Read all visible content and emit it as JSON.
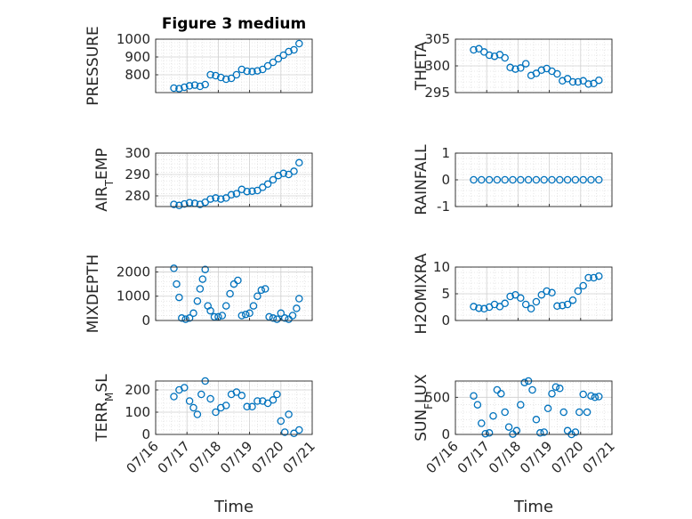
{
  "figure_title": "Figure 3 medium",
  "marker_color": "#0072BD",
  "xaxis": {
    "label": "Time",
    "range": [
      "2016-07-16",
      "2016-07-21"
    ],
    "ticks": [
      {
        "date": "2016-07-16",
        "label": "07/16"
      },
      {
        "date": "2016-07-17",
        "label": "07/17"
      },
      {
        "date": "2016-07-18",
        "label": "07/18"
      },
      {
        "date": "2016-07-19",
        "label": "07/19"
      },
      {
        "date": "2016-07-20",
        "label": "07/20"
      },
      {
        "date": "2016-07-21",
        "label": "07/21"
      }
    ]
  },
  "chart_data": [
    {
      "id": "pressure",
      "type": "scatter",
      "title": "Figure 3 medium",
      "ylabel": "PRESSURE",
      "ylim": [
        700,
        1000
      ],
      "yticks": [
        800,
        900,
        1000
      ],
      "grid": true,
      "x": [
        "2016-07-16 14:00",
        "2016-07-16 18:00",
        "2016-07-16 22:00",
        "2016-07-17 02:00",
        "2016-07-17 06:00",
        "2016-07-17 10:00",
        "2016-07-17 14:00",
        "2016-07-17 18:00",
        "2016-07-17 22:00",
        "2016-07-18 02:00",
        "2016-07-18 06:00",
        "2016-07-18 10:00",
        "2016-07-18 14:00",
        "2016-07-18 18:00",
        "2016-07-18 22:00",
        "2016-07-19 02:00",
        "2016-07-19 06:00",
        "2016-07-19 10:00",
        "2016-07-19 14:00",
        "2016-07-19 18:00",
        "2016-07-19 22:00",
        "2016-07-20 02:00",
        "2016-07-20 06:00",
        "2016-07-20 10:00",
        "2016-07-20 14:00"
      ],
      "y": [
        725,
        722,
        730,
        738,
        742,
        735,
        745,
        800,
        795,
        785,
        775,
        780,
        800,
        830,
        820,
        818,
        822,
        830,
        850,
        870,
        890,
        910,
        930,
        940,
        975
      ]
    },
    {
      "id": "theta",
      "type": "scatter",
      "ylabel": "THETA",
      "ylim": [
        295,
        305
      ],
      "yticks": [
        295,
        300,
        305
      ],
      "grid": true,
      "x": [
        "2016-07-16 14:00",
        "2016-07-16 18:00",
        "2016-07-16 22:00",
        "2016-07-17 02:00",
        "2016-07-17 06:00",
        "2016-07-17 10:00",
        "2016-07-17 14:00",
        "2016-07-17 18:00",
        "2016-07-17 22:00",
        "2016-07-18 02:00",
        "2016-07-18 06:00",
        "2016-07-18 10:00",
        "2016-07-18 14:00",
        "2016-07-18 18:00",
        "2016-07-18 22:00",
        "2016-07-19 02:00",
        "2016-07-19 06:00",
        "2016-07-19 10:00",
        "2016-07-19 14:00",
        "2016-07-19 18:00",
        "2016-07-19 22:00",
        "2016-07-20 02:00",
        "2016-07-20 06:00",
        "2016-07-20 10:00",
        "2016-07-20 14:00"
      ],
      "y": [
        303,
        303.2,
        302.6,
        302,
        301.8,
        302.1,
        301.5,
        299.7,
        299.4,
        299.6,
        300.4,
        298.2,
        298.6,
        299.2,
        299.5,
        299,
        298.5,
        297.2,
        297.6,
        297,
        297,
        297.2,
        296.6,
        296.7,
        297.3
      ]
    },
    {
      "id": "air_temp",
      "type": "scatter",
      "ylabel": "AIR_TEMP",
      "ylim": [
        275,
        300
      ],
      "yticks": [
        280,
        290,
        300
      ],
      "grid": true,
      "x": [
        "2016-07-16 14:00",
        "2016-07-16 18:00",
        "2016-07-16 22:00",
        "2016-07-17 02:00",
        "2016-07-17 06:00",
        "2016-07-17 10:00",
        "2016-07-17 14:00",
        "2016-07-17 18:00",
        "2016-07-17 22:00",
        "2016-07-18 02:00",
        "2016-07-18 06:00",
        "2016-07-18 10:00",
        "2016-07-18 14:00",
        "2016-07-18 18:00",
        "2016-07-18 22:00",
        "2016-07-19 02:00",
        "2016-07-19 06:00",
        "2016-07-19 10:00",
        "2016-07-19 14:00",
        "2016-07-19 18:00",
        "2016-07-19 22:00",
        "2016-07-20 02:00",
        "2016-07-20 06:00",
        "2016-07-20 10:00",
        "2016-07-20 14:00"
      ],
      "y": [
        276,
        275.5,
        276.2,
        276.8,
        276.5,
        276,
        277,
        278.5,
        279,
        278.5,
        279,
        280.5,
        281,
        283,
        282,
        282.2,
        282.5,
        284,
        285.5,
        287.5,
        289.5,
        290.5,
        290,
        291.5,
        295.5
      ]
    },
    {
      "id": "rainfall",
      "type": "scatter",
      "ylabel": "RAINFALL",
      "ylim": [
        -1,
        1
      ],
      "yticks": [
        -1,
        0,
        1
      ],
      "grid": true,
      "x": [
        "2016-07-16 14:00",
        "2016-07-16 20:00",
        "2016-07-17 02:00",
        "2016-07-17 08:00",
        "2016-07-17 14:00",
        "2016-07-17 20:00",
        "2016-07-18 02:00",
        "2016-07-18 08:00",
        "2016-07-18 14:00",
        "2016-07-18 20:00",
        "2016-07-19 02:00",
        "2016-07-19 08:00",
        "2016-07-19 14:00",
        "2016-07-19 20:00",
        "2016-07-20 02:00",
        "2016-07-20 08:00",
        "2016-07-20 14:00"
      ],
      "y": [
        0,
        0,
        0,
        0,
        0,
        0,
        0,
        0,
        0,
        0,
        0,
        0,
        0,
        0,
        0,
        0,
        0
      ]
    },
    {
      "id": "mixdepth",
      "type": "scatter",
      "ylabel": "MIXDEPTH",
      "ylim": [
        0,
        2200
      ],
      "yticks": [
        0,
        1000,
        2000
      ],
      "grid": true,
      "x": [
        "2016-07-16 14:00",
        "2016-07-16 16:00",
        "2016-07-16 18:00",
        "2016-07-16 20:00",
        "2016-07-16 23:00",
        "2016-07-17 02:00",
        "2016-07-17 05:00",
        "2016-07-17 08:00",
        "2016-07-17 10:00",
        "2016-07-17 12:00",
        "2016-07-17 14:00",
        "2016-07-17 16:00",
        "2016-07-17 18:00",
        "2016-07-17 21:00",
        "2016-07-18 00:00",
        "2016-07-18 03:00",
        "2016-07-18 06:00",
        "2016-07-18 09:00",
        "2016-07-18 12:00",
        "2016-07-18 15:00",
        "2016-07-18 18:00",
        "2016-07-18 21:00",
        "2016-07-19 00:00",
        "2016-07-19 03:00",
        "2016-07-19 06:00",
        "2016-07-19 09:00",
        "2016-07-19 12:00",
        "2016-07-19 15:00",
        "2016-07-19 18:00",
        "2016-07-19 21:00",
        "2016-07-20 00:00",
        "2016-07-20 03:00",
        "2016-07-20 06:00",
        "2016-07-20 09:00",
        "2016-07-20 12:00",
        "2016-07-20 14:00"
      ],
      "y": [
        2150,
        1500,
        950,
        100,
        50,
        100,
        300,
        800,
        1300,
        1700,
        2100,
        600,
        400,
        150,
        150,
        200,
        600,
        1100,
        1500,
        1650,
        200,
        250,
        300,
        600,
        1000,
        1250,
        1300,
        150,
        100,
        50,
        300,
        100,
        50,
        200,
        500,
        900
      ]
    },
    {
      "id": "h2omixra",
      "type": "scatter",
      "ylabel": "H2OMIXRA",
      "ylim": [
        0,
        10
      ],
      "yticks": [
        0,
        5,
        10
      ],
      "grid": true,
      "x": [
        "2016-07-16 14:00",
        "2016-07-16 18:00",
        "2016-07-16 22:00",
        "2016-07-17 02:00",
        "2016-07-17 06:00",
        "2016-07-17 10:00",
        "2016-07-17 14:00",
        "2016-07-17 18:00",
        "2016-07-17 22:00",
        "2016-07-18 02:00",
        "2016-07-18 06:00",
        "2016-07-18 10:00",
        "2016-07-18 14:00",
        "2016-07-18 18:00",
        "2016-07-18 22:00",
        "2016-07-19 02:00",
        "2016-07-19 06:00",
        "2016-07-19 10:00",
        "2016-07-19 14:00",
        "2016-07-19 18:00",
        "2016-07-19 22:00",
        "2016-07-20 02:00",
        "2016-07-20 06:00",
        "2016-07-20 10:00",
        "2016-07-20 14:00"
      ],
      "y": [
        2.6,
        2.3,
        2.2,
        2.5,
        3,
        2.6,
        3.2,
        4.5,
        4.8,
        4.2,
        3,
        2.2,
        3.5,
        4.8,
        5.5,
        5.2,
        2.7,
        2.8,
        3,
        3.8,
        5.5,
        6.5,
        8,
        8,
        8.3
      ]
    },
    {
      "id": "terr_msl",
      "type": "scatter",
      "ylabel": "TERR_MSL",
      "ylim": [
        0,
        240
      ],
      "yticks": [
        0,
        100,
        200
      ],
      "grid": true,
      "x": [
        "2016-07-16 14:00",
        "2016-07-16 18:00",
        "2016-07-16 22:00",
        "2016-07-17 02:00",
        "2016-07-17 05:00",
        "2016-07-17 08:00",
        "2016-07-17 11:00",
        "2016-07-17 14:00",
        "2016-07-17 18:00",
        "2016-07-17 22:00",
        "2016-07-18 02:00",
        "2016-07-18 06:00",
        "2016-07-18 10:00",
        "2016-07-18 14:00",
        "2016-07-18 18:00",
        "2016-07-18 22:00",
        "2016-07-19 02:00",
        "2016-07-19 06:00",
        "2016-07-19 10:00",
        "2016-07-19 14:00",
        "2016-07-19 18:00",
        "2016-07-19 21:00",
        "2016-07-20 00:00",
        "2016-07-20 03:00",
        "2016-07-20 06:00",
        "2016-07-20 10:00",
        "2016-07-20 14:00"
      ],
      "y": [
        170,
        200,
        210,
        150,
        120,
        90,
        180,
        240,
        160,
        100,
        120,
        130,
        180,
        190,
        175,
        125,
        125,
        150,
        150,
        140,
        155,
        180,
        60,
        10,
        90,
        5,
        20
      ]
    },
    {
      "id": "sun_flux",
      "type": "scatter",
      "ylabel": "SUN_FLUX",
      "ylim": [
        0,
        720
      ],
      "yticks": [
        0,
        500
      ],
      "grid": true,
      "x": [
        "2016-07-16 14:00",
        "2016-07-16 17:00",
        "2016-07-16 20:00",
        "2016-07-16 23:00",
        "2016-07-17 02:00",
        "2016-07-17 05:00",
        "2016-07-17 08:00",
        "2016-07-17 11:00",
        "2016-07-17 14:00",
        "2016-07-17 17:00",
        "2016-07-17 20:00",
        "2016-07-17 23:00",
        "2016-07-18 02:00",
        "2016-07-18 05:00",
        "2016-07-18 08:00",
        "2016-07-18 11:00",
        "2016-07-18 14:00",
        "2016-07-18 17:00",
        "2016-07-18 20:00",
        "2016-07-18 23:00",
        "2016-07-19 02:00",
        "2016-07-19 05:00",
        "2016-07-19 08:00",
        "2016-07-19 11:00",
        "2016-07-19 14:00",
        "2016-07-19 17:00",
        "2016-07-19 20:00",
        "2016-07-19 23:00",
        "2016-07-20 02:00",
        "2016-07-20 05:00",
        "2016-07-20 08:00",
        "2016-07-20 11:00",
        "2016-07-20 14:00"
      ],
      "y": [
        520,
        400,
        150,
        10,
        20,
        250,
        600,
        550,
        300,
        100,
        5,
        50,
        400,
        700,
        720,
        600,
        200,
        20,
        30,
        350,
        550,
        640,
        620,
        300,
        50,
        0,
        30,
        300,
        540,
        300,
        520,
        500,
        510
      ]
    }
  ]
}
